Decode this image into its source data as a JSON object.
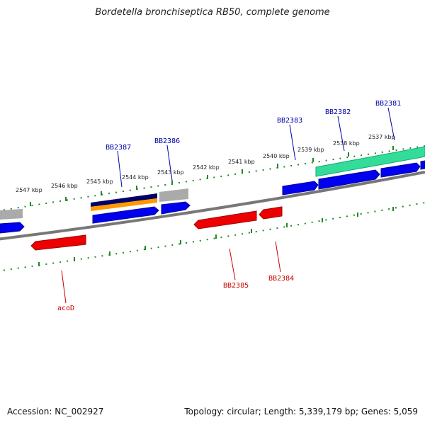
{
  "title": "Bordetella bronchiseptica RB50, complete genome",
  "footer": {
    "accession": "Accession: NC_002927",
    "summary": "Topology: circular; Length: 5,339,179 bp; Genes: 5,059"
  },
  "colors": {
    "forward_gene": "#0000ee",
    "reverse_gene": "#ee0000",
    "rna_gene": "#33dd99",
    "navy_feature": "#000066",
    "orange_feature": "#ff9900",
    "gray_feature": "#aaaaaa",
    "backbone": "#777777",
    "tick": "#228822",
    "forward_label": "#0000aa",
    "reverse_label": "#cc0000"
  },
  "scale_labels": [
    "2537 kbp",
    "2538 kbp",
    "2539 kbp",
    "2540 kbp",
    "2541 kbp",
    "2542 kbp",
    "2543 kbp",
    "2544 kbp",
    "2545 kbp",
    "2546 kbp",
    "2547 kbp"
  ],
  "forward_labels": [
    "BB2381",
    "BB2382",
    "BB2383",
    "BB2386",
    "BB2387"
  ],
  "reverse_labels": [
    "BB2384",
    "BB2385",
    "acoD"
  ]
}
